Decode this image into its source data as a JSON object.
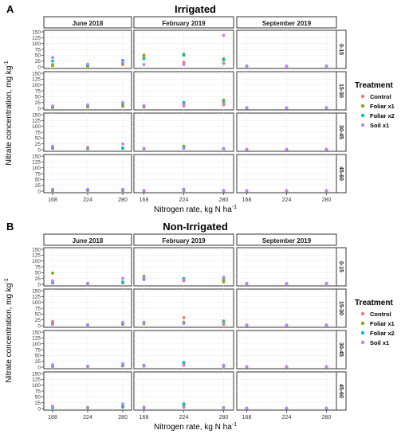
{
  "chart_data": {
    "type": "scatter",
    "x_values": [
      168,
      224,
      280
    ],
    "treatments": [
      {
        "name": "Control",
        "color": "#F8766D"
      },
      {
        "name": "Foliar x1",
        "color": "#7CAE00"
      },
      {
        "name": "Foliar x2",
        "color": "#00BFC4"
      },
      {
        "name": "Soil x1",
        "color": "#C77CFF"
      }
    ],
    "legend_title": "Treatment",
    "legend_placement": "right",
    "xlabel": "Nitrogen rate, kg N",
    "xlabel_unit": "ha",
    "xlabel_exp": "-1",
    "ylabel": "Nitrate concentration, mg kg",
    "ylabel_exp": "-1",
    "months": [
      "June 2018",
      "February 2019",
      "September 2019"
    ],
    "depths": [
      "0-15",
      "15-30",
      "30-45",
      "45-60"
    ],
    "ylim": [
      0,
      150
    ],
    "yticks": [
      0,
      25,
      50,
      75,
      100,
      125,
      150
    ],
    "xticks": [
      168,
      224,
      280
    ],
    "grid": true,
    "panels": [
      {
        "letter": "A",
        "title": "Irrigated",
        "facets": [
          [
            [
              [
                10,
                5,
                25,
                40
              ],
              [
                5,
                3,
                8,
                12
              ],
              [
                10,
                15,
                28,
                20
              ]
            ],
            [
              [
                40,
                50,
                35,
                10
              ],
              [
                20,
                55,
                50,
                10
              ],
              [
                15,
                35,
                30,
                135
              ]
            ],
            [
              [
                3,
                2,
                4,
                3
              ],
              [
                3,
                2,
                3,
                2
              ],
              [
                3,
                2,
                4,
                3
              ]
            ]
          ],
          [
            [
              [
                5,
                3,
                8,
                10
              ],
              [
                5,
                8,
                12,
                15
              ],
              [
                8,
                12,
                20,
                25
              ]
            ],
            [
              [
                5,
                8,
                10,
                12
              ],
              [
                10,
                20,
                25,
                15
              ],
              [
                15,
                35,
                25,
                20
              ]
            ],
            [
              [
                2,
                1,
                3,
                2
              ],
              [
                2,
                1,
                2,
                1
              ],
              [
                2,
                1,
                3,
                2
              ]
            ]
          ],
          [
            [
              [
                5,
                8,
                10,
                15
              ],
              [
                5,
                4,
                8,
                10
              ],
              [
                5,
                6,
                8,
                25
              ]
            ],
            [
              [
                4,
                3,
                5,
                6
              ],
              [
                8,
                15,
                10,
                5
              ],
              [
                4,
                3,
                5,
                3
              ]
            ],
            [
              [
                1,
                1,
                1,
                1
              ],
              [
                1,
                1,
                1,
                1
              ],
              [
                1,
                1,
                1,
                1
              ]
            ]
          ],
          [
            [
              [
                3,
                2,
                5,
                8
              ],
              [
                4,
                3,
                6,
                8
              ],
              [
                3,
                2,
                5,
                8
              ]
            ],
            [
              [
                2,
                1,
                3,
                2
              ],
              [
                3,
                2,
                8,
                5
              ],
              [
                2,
                1,
                3,
                2
              ]
            ],
            [
              [
                1,
                1,
                1,
                1
              ],
              [
                1,
                1,
                1,
                1
              ],
              [
                1,
                1,
                1,
                1
              ]
            ]
          ]
        ]
      },
      {
        "letter": "B",
        "title": "Non-Irrigated",
        "facets": [
          [
            [
              [
                5,
                48,
                8,
                15
              ],
              [
                3,
                2,
                4,
                3
              ],
              [
                5,
                8,
                10,
                25
              ]
            ],
            [
              [
                20,
                35,
                25,
                30
              ],
              [
                15,
                20,
                25,
                20
              ],
              [
                10,
                15,
                25,
                30
              ]
            ],
            [
              [
                3,
                2,
                4,
                3
              ],
              [
                3,
                2,
                3,
                2
              ],
              [
                3,
                2,
                4,
                3
              ]
            ]
          ],
          [
            [
              [
                18,
                10,
                8,
                5
              ],
              [
                3,
                2,
                4,
                3
              ],
              [
                5,
                8,
                10,
                15
              ]
            ],
            [
              [
                10,
                8,
                15,
                12
              ],
              [
                35,
                15,
                10,
                10
              ],
              [
                5,
                20,
                15,
                10
              ]
            ],
            [
              [
                2,
                1,
                3,
                2
              ],
              [
                2,
                1,
                2,
                1
              ],
              [
                2,
                1,
                3,
                2
              ]
            ]
          ],
          [
            [
              [
                10,
                5,
                3,
                8
              ],
              [
                3,
                2,
                4,
                3
              ],
              [
                5,
                8,
                10,
                15
              ]
            ],
            [
              [
                5,
                8,
                6,
                4
              ],
              [
                10,
                15,
                20,
                8
              ],
              [
                8,
                3,
                4,
                5
              ]
            ],
            [
              [
                1,
                1,
                1,
                1
              ],
              [
                1,
                1,
                1,
                1
              ],
              [
                1,
                1,
                1,
                1
              ]
            ]
          ],
          [
            [
              [
                10,
                5,
                3,
                8
              ],
              [
                3,
                2,
                5,
                4
              ],
              [
                5,
                8,
                10,
                20
              ]
            ],
            [
              [
                3,
                2,
                5,
                6
              ],
              [
                15,
                10,
                20,
                5
              ],
              [
                3,
                2,
                4,
                3
              ]
            ],
            [
              [
                1,
                1,
                1,
                1
              ],
              [
                1,
                1,
                1,
                1
              ],
              [
                1,
                1,
                1,
                1
              ]
            ]
          ]
        ]
      }
    ]
  }
}
